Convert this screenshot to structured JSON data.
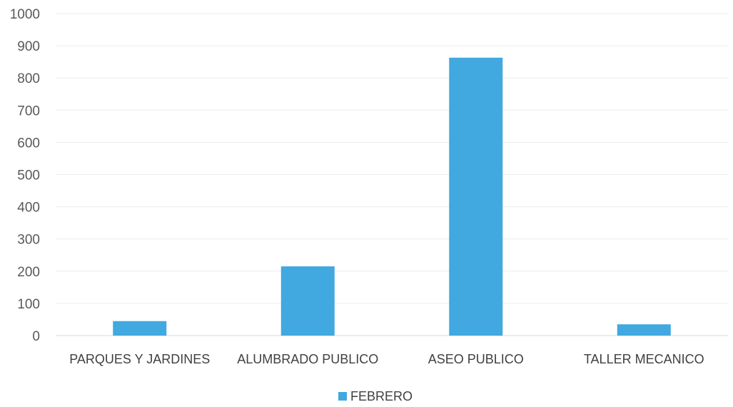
{
  "chart_data": {
    "type": "bar",
    "categories": [
      "PARQUES Y JARDINES",
      "ALUMBRADO PUBLICO",
      "ASEO PUBLICO",
      "TALLER MECANICO"
    ],
    "series": [
      {
        "name": "FEBRERO",
        "values": [
          45,
          215,
          863,
          35
        ],
        "color": "#41a8e0"
      }
    ],
    "ylim": [
      0,
      1000
    ],
    "yticks": [
      0,
      100,
      200,
      300,
      400,
      500,
      600,
      700,
      800,
      900,
      1000
    ],
    "grid": true,
    "legend_position": "bottom"
  }
}
